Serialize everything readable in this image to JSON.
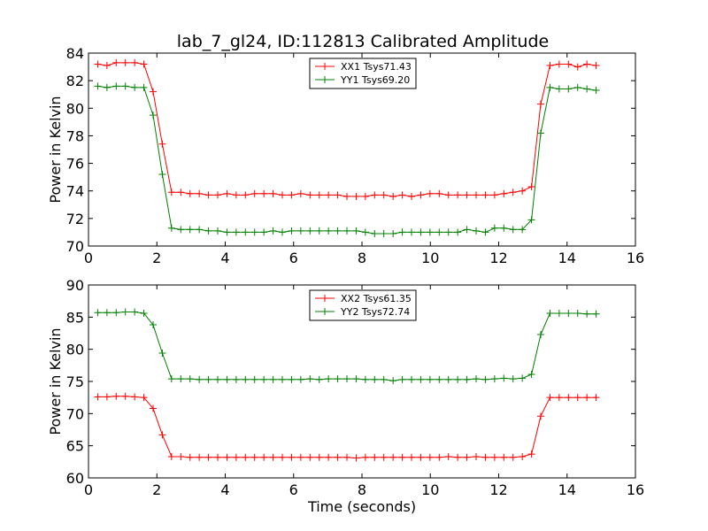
{
  "figure": {
    "title": "lab_7_gl24, ID:112813 Calibrated Amplitude"
  },
  "chart_data": [
    {
      "type": "line",
      "title": "lab_7_gl24, ID:112813 Calibrated Amplitude",
      "xlabel": "",
      "ylabel": "Power in Kelvin",
      "xlim": [
        0,
        16
      ],
      "ylim": [
        70,
        84
      ],
      "xticks": [
        "0",
        "2",
        "4",
        "6",
        "8",
        "10",
        "12",
        "14",
        "16"
      ],
      "yticks": [
        "70",
        "72",
        "74",
        "76",
        "78",
        "80",
        "82",
        "84"
      ],
      "legend_position": "top-center",
      "grid": false,
      "x": [
        0.27,
        0.54,
        0.81,
        1.08,
        1.35,
        1.62,
        1.89,
        2.16,
        2.43,
        2.7,
        2.97,
        3.24,
        3.51,
        3.78,
        4.05,
        4.32,
        4.59,
        4.86,
        5.13,
        5.4,
        5.67,
        5.94,
        6.21,
        6.48,
        6.75,
        7.02,
        7.29,
        7.56,
        7.83,
        8.1,
        8.37,
        8.64,
        8.91,
        9.18,
        9.45,
        9.72,
        9.99,
        10.26,
        10.53,
        10.8,
        11.07,
        11.34,
        11.61,
        11.88,
        12.15,
        12.42,
        12.69,
        12.96,
        13.23,
        13.5,
        13.77,
        14.04,
        14.31,
        14.58,
        14.85
      ],
      "series": [
        {
          "name": "XX1 Tsys71.43",
          "color": "#ff0000",
          "values": [
            83.2,
            83.1,
            83.3,
            83.3,
            83.3,
            83.2,
            81.2,
            77.4,
            73.9,
            73.9,
            73.8,
            73.8,
            73.7,
            73.7,
            73.8,
            73.7,
            73.7,
            73.8,
            73.8,
            73.8,
            73.7,
            73.7,
            73.8,
            73.7,
            73.7,
            73.7,
            73.7,
            73.6,
            73.6,
            73.6,
            73.7,
            73.7,
            73.6,
            73.7,
            73.6,
            73.7,
            73.8,
            73.8,
            73.7,
            73.7,
            73.7,
            73.7,
            73.7,
            73.7,
            73.8,
            73.9,
            74.0,
            74.3,
            80.3,
            83.1,
            83.2,
            83.2,
            83.0,
            83.2,
            83.1
          ]
        },
        {
          "name": "YY1 Tsys69.20",
          "color": "#008000",
          "values": [
            81.6,
            81.5,
            81.6,
            81.6,
            81.5,
            81.5,
            79.5,
            75.2,
            71.3,
            71.2,
            71.2,
            71.2,
            71.1,
            71.1,
            71.0,
            71.0,
            71.0,
            71.0,
            71.0,
            71.1,
            71.0,
            71.1,
            71.1,
            71.1,
            71.1,
            71.1,
            71.1,
            71.1,
            71.1,
            71.0,
            70.9,
            70.9,
            70.9,
            71.0,
            71.0,
            71.0,
            71.0,
            71.0,
            71.0,
            71.0,
            71.2,
            71.1,
            71.0,
            71.3,
            71.3,
            71.2,
            71.2,
            71.9,
            78.2,
            81.5,
            81.4,
            81.4,
            81.5,
            81.4,
            81.3
          ]
        }
      ]
    },
    {
      "type": "line",
      "title": "",
      "xlabel": "Time (seconds)",
      "ylabel": "Power in Kelvin",
      "xlim": [
        0,
        16
      ],
      "ylim": [
        60,
        90
      ],
      "xticks": [
        "0",
        "2",
        "4",
        "6",
        "8",
        "10",
        "12",
        "14",
        "16"
      ],
      "yticks": [
        "60",
        "65",
        "70",
        "75",
        "80",
        "85",
        "90"
      ],
      "legend_position": "top-center",
      "grid": false,
      "x": [
        0.27,
        0.54,
        0.81,
        1.08,
        1.35,
        1.62,
        1.89,
        2.16,
        2.43,
        2.7,
        2.97,
        3.24,
        3.51,
        3.78,
        4.05,
        4.32,
        4.59,
        4.86,
        5.13,
        5.4,
        5.67,
        5.94,
        6.21,
        6.48,
        6.75,
        7.02,
        7.29,
        7.56,
        7.83,
        8.1,
        8.37,
        8.64,
        8.91,
        9.18,
        9.45,
        9.72,
        9.99,
        10.26,
        10.53,
        10.8,
        11.07,
        11.34,
        11.61,
        11.88,
        12.15,
        12.42,
        12.69,
        12.96,
        13.23,
        13.5,
        13.77,
        14.04,
        14.31,
        14.58,
        14.85
      ],
      "series": [
        {
          "name": "XX2 Tsys61.35",
          "color": "#ff0000",
          "values": [
            72.6,
            72.6,
            72.7,
            72.7,
            72.6,
            72.5,
            70.8,
            66.7,
            63.3,
            63.3,
            63.2,
            63.2,
            63.2,
            63.2,
            63.2,
            63.2,
            63.2,
            63.2,
            63.2,
            63.2,
            63.2,
            63.2,
            63.2,
            63.2,
            63.2,
            63.2,
            63.2,
            63.2,
            63.1,
            63.2,
            63.2,
            63.2,
            63.2,
            63.2,
            63.2,
            63.2,
            63.2,
            63.2,
            63.3,
            63.2,
            63.2,
            63.3,
            63.2,
            63.2,
            63.2,
            63.2,
            63.3,
            63.7,
            69.6,
            72.5,
            72.5,
            72.5,
            72.5,
            72.5,
            72.5
          ]
        },
        {
          "name": "YY2 Tsys72.74",
          "color": "#008000",
          "values": [
            85.7,
            85.7,
            85.7,
            85.8,
            85.8,
            85.6,
            83.8,
            79.4,
            75.4,
            75.4,
            75.4,
            75.3,
            75.3,
            75.3,
            75.3,
            75.3,
            75.3,
            75.3,
            75.3,
            75.3,
            75.3,
            75.3,
            75.3,
            75.4,
            75.3,
            75.4,
            75.4,
            75.4,
            75.4,
            75.3,
            75.3,
            75.3,
            75.1,
            75.3,
            75.3,
            75.3,
            75.3,
            75.3,
            75.3,
            75.3,
            75.3,
            75.4,
            75.3,
            75.4,
            75.5,
            75.4,
            75.5,
            76.1,
            82.3,
            85.6,
            85.6,
            85.6,
            85.6,
            85.5,
            85.5
          ]
        }
      ]
    }
  ]
}
